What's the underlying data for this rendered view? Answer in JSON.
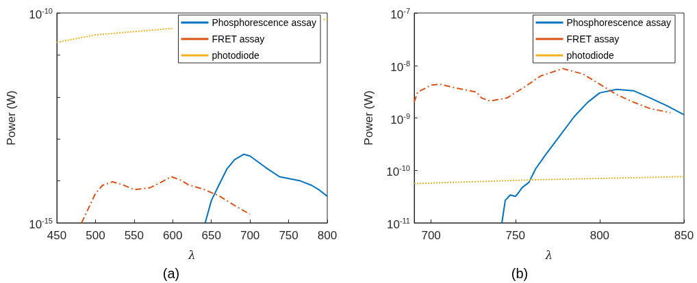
{
  "chart_data": [
    {
      "type": "line",
      "xlabel": "λ",
      "ylabel": "Power (W)",
      "annotations": [
        "(a)"
      ],
      "log": "y",
      "legend": "top right",
      "grid": false,
      "xlim": [
        450,
        800
      ],
      "xticks": [
        450,
        500,
        550,
        600,
        650,
        700,
        750,
        800
      ],
      "ylim": [
        1e-15,
        1e-10
      ],
      "yticks": [
        {
          "value": 1e-15,
          "label": "10$^{-15}$"
        },
        {
          "value": 1e-14,
          "label": null
        },
        {
          "value": 1e-13,
          "label": null
        },
        {
          "value": 1e-12,
          "label": null
        },
        {
          "value": 1e-11,
          "label": null
        },
        {
          "value": 1e-10,
          "label": "10$^{-10}$"
        }
      ],
      "series": [
        {
          "name": "Phosphorescence assay",
          "color": "#0072bd",
          "line_style": "solid",
          "x": [
            642,
            650,
            660,
            670,
            680,
            692,
            700,
            720,
            738,
            765,
            780,
            790,
            800
          ],
          "values": [
            1e-15,
            3.4e-15,
            8.1e-15,
            1.9e-14,
            3.2e-14,
            4.3e-14,
            3.9e-14,
            2.1e-14,
            1.26e-14,
            1e-14,
            7.8e-15,
            6e-15,
            4.3e-15
          ]
        },
        {
          "name": "FRET assay",
          "color": "#d95319",
          "line_style": "dashed",
          "x": [
            482,
            500,
            509,
            522,
            535,
            550,
            570,
            585,
            598,
            610,
            620,
            640,
            660,
            680,
            700
          ],
          "values": [
            1e-15,
            5e-15,
            7.8e-15,
            9.5e-15,
            8.1e-15,
            6.2e-15,
            6.8e-15,
            9.3e-15,
            1.26e-14,
            1.05e-14,
            8.1e-15,
            6.3e-15,
            4.4e-15,
            2.6e-15,
            1.6e-15
          ]
        },
        {
          "name": "photodiode",
          "color": "#edb120",
          "line_style": "dotted",
          "x": [
            450,
            500,
            550,
            600,
            700,
            795,
            800
          ],
          "values": [
            2e-11,
            3e-11,
            3.6e-11,
            4.3e-11,
            null,
            7e-11,
            7.1e-11
          ]
        }
      ]
    },
    {
      "type": "line",
      "xlabel": "λ",
      "ylabel": "Power (W)",
      "annotations": [
        "(b)"
      ],
      "log": "y",
      "legend": "top right",
      "grid": false,
      "xlim": [
        690,
        850
      ],
      "xticks": [
        700,
        750,
        800,
        850
      ],
      "ylim": [
        1e-11,
        1e-07
      ],
      "yticks": [
        {
          "value": 1e-11,
          "label": "10$^{-11}$"
        },
        {
          "value": 1e-10,
          "label": "10$^{-10}$"
        },
        {
          "value": 1e-09,
          "label": "10$^{-9}$"
        },
        {
          "value": 1e-08,
          "label": "10$^{-8}$"
        },
        {
          "value": 1e-07,
          "label": "10$^{-7}$"
        }
      ],
      "series": [
        {
          "name": "Phosphorescence assay",
          "color": "#0072bd",
          "line_style": "solid",
          "x": [
            742,
            744,
            747,
            750,
            752,
            754,
            758,
            762,
            768,
            775,
            785,
            793,
            800,
            810,
            820,
            830,
            840,
            850
          ],
          "values": [
            1e-11,
            2.7e-11,
            3.4e-11,
            3.2e-11,
            3.8e-11,
            4.7e-11,
            5.9e-11,
            1.07e-10,
            2e-10,
            4e-10,
            1.07e-09,
            2e-09,
            3e-09,
            3.5e-09,
            3.3e-09,
            2.4e-09,
            1.7e-09,
            1.15e-09
          ]
        },
        {
          "name": "FRET assay",
          "color": "#d95319",
          "line_style": "dashed",
          "x": [
            690,
            692,
            700,
            705,
            715,
            727,
            730,
            735,
            745,
            755,
            765,
            778,
            790,
            800,
            810,
            820,
            830,
            842
          ],
          "values": [
            2e-09,
            3.1e-09,
            4.2e-09,
            4.4e-09,
            3.7e-09,
            3.1e-09,
            2.4e-09,
            2.1e-09,
            2.4e-09,
            3.8e-09,
            6.3e-09,
            8.7e-09,
            6.9e-09,
            4.4e-09,
            2.8e-09,
            2e-09,
            1.5e-09,
            1.26e-09
          ]
        },
        {
          "name": "photodiode",
          "color": "#edb120",
          "line_style": "dotted",
          "x": [
            690,
            760,
            850
          ],
          "values": [
            5.6e-11,
            6.6e-11,
            7.6e-11
          ]
        }
      ]
    }
  ]
}
